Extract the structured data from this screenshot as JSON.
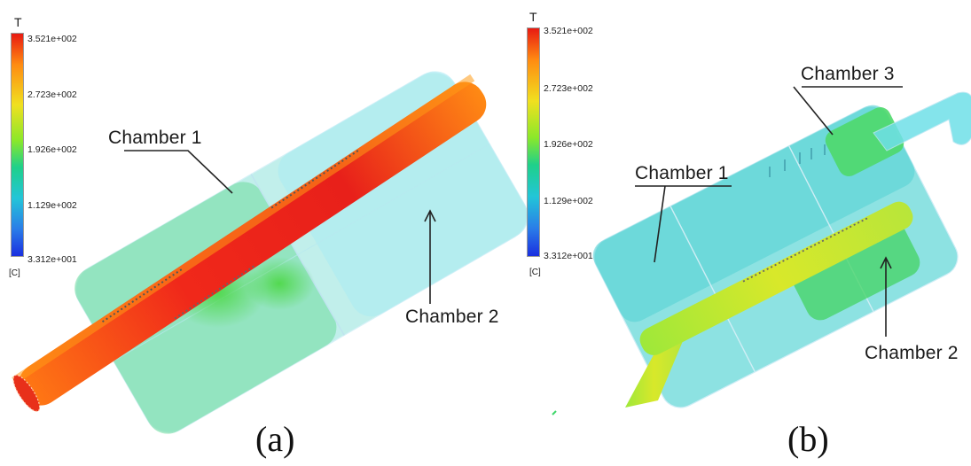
{
  "colors": {
    "hot": "#e8281a",
    "warm": "#f0d82a",
    "mid": "#3ed76a",
    "cool": "#5ed6d6",
    "cold": "#1a2fe0",
    "outline": "#9fd4ef"
  },
  "legend_a": {
    "variable": "T",
    "unit": "[C]",
    "ticks": [
      "3.521e+002",
      "2.723e+002",
      "1.926e+002",
      "1.129e+002",
      "3.312e+001"
    ]
  },
  "legend_b": {
    "variable": "T",
    "unit": "[C]",
    "ticks": [
      "3.521e+002",
      "2.723e+002",
      "1.926e+002",
      "1.129e+002",
      "3.312e+001"
    ]
  },
  "panel_a": {
    "label": "(a)",
    "callouts": {
      "chamber1": "Chamber 1",
      "chamber2": "Chamber 2"
    }
  },
  "panel_b": {
    "label": "(b)",
    "callouts": {
      "chamber1": "Chamber 1",
      "chamber2": "Chamber 2",
      "chamber3": "Chamber 3"
    }
  }
}
